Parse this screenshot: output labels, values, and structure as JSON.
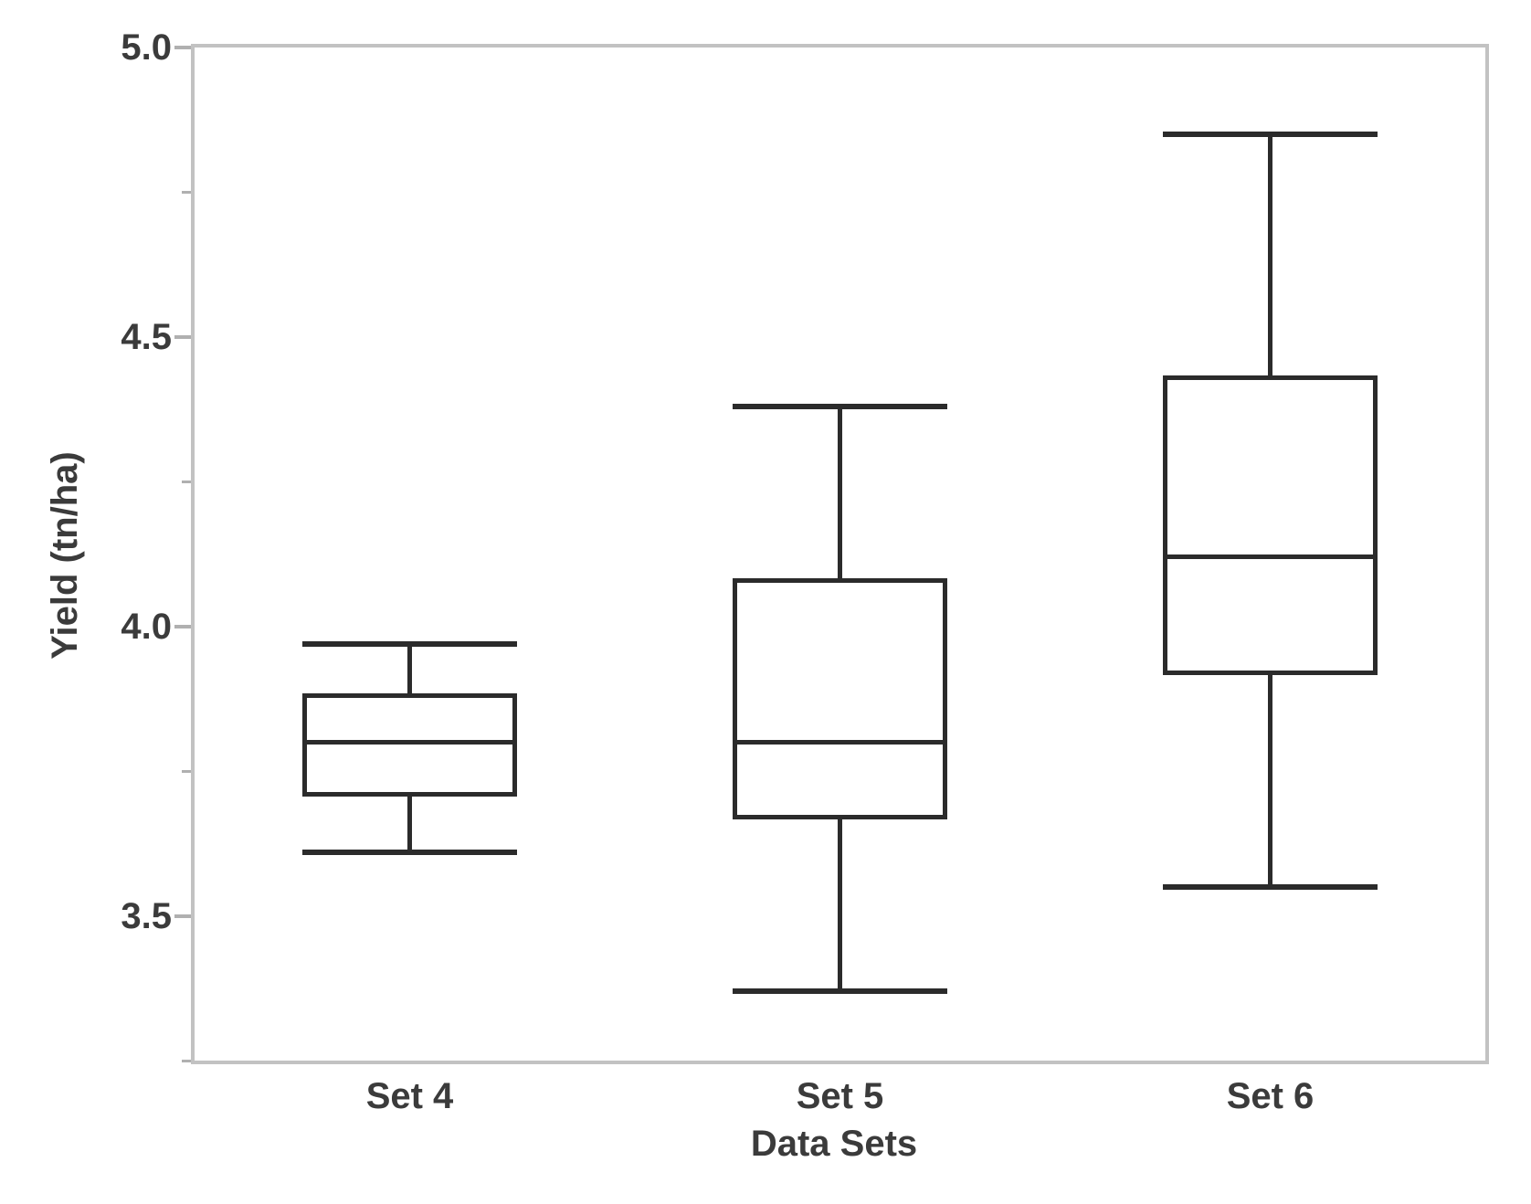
{
  "chart_data": {
    "type": "boxplot",
    "title": "",
    "xlabel": "Data Sets",
    "ylabel": "Yield (tn/ha)",
    "categories": [
      "Set 4",
      "Set 5",
      "Set 6"
    ],
    "series": [
      {
        "name": "Set 4",
        "min": 3.61,
        "q1": 3.71,
        "median": 3.8,
        "q3": 3.88,
        "max": 3.97
      },
      {
        "name": "Set 5",
        "min": 3.37,
        "q1": 3.67,
        "median": 3.8,
        "q3": 4.08,
        "max": 4.38
      },
      {
        "name": "Set 6",
        "min": 3.55,
        "q1": 3.92,
        "median": 4.12,
        "q3": 4.43,
        "max": 4.85
      }
    ],
    "ylim": [
      3.25,
      5.0
    ],
    "y_major_ticks": [
      3.5,
      4.0,
      4.5,
      5.0
    ],
    "y_minor_ticks": [
      3.25,
      3.75,
      4.25,
      4.75
    ],
    "y_tick_decimals": 1,
    "grid": false,
    "legend": false,
    "orientation": "vertical"
  },
  "colors": {
    "background": "#ffffff",
    "box_stroke": "#2b2b2b",
    "frame": "#c2c2c2",
    "tick": "#b0b0b0",
    "text": "#3b3b3b"
  }
}
